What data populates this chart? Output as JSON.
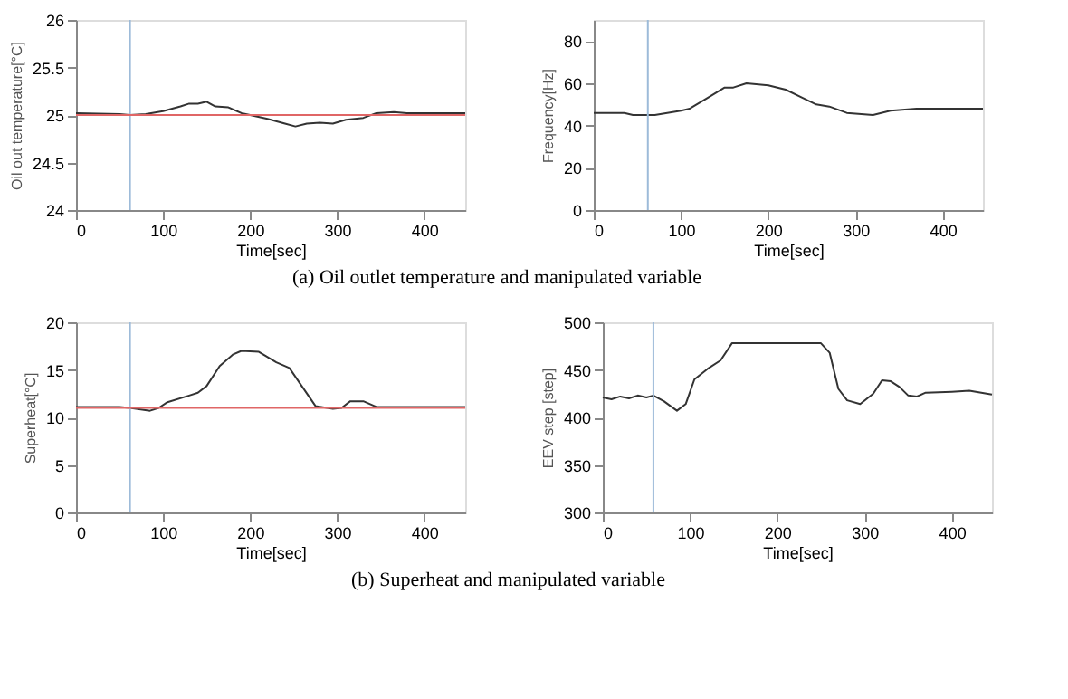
{
  "chart_data": [
    {
      "type": "line",
      "xlabel": "Time[sec]",
      "ylabel": "Oil out temperature[°C]",
      "xlim": [
        0,
        447
      ],
      "xticks": [
        0,
        100,
        200,
        300,
        400
      ],
      "ylim": [
        24,
        26
      ],
      "yticks": [
        24,
        24.5,
        25,
        25.5,
        26
      ],
      "grid": false,
      "marker": "none",
      "line_style": "solid",
      "annotations": [
        "(a)  Oil  outlet  temperature  and  manipulated  variable"
      ],
      "ref_lines": [
        {
          "axis": "x",
          "value": 62,
          "color": "#9dbbd9"
        },
        {
          "axis": "y",
          "value": 25,
          "color": "#e06666"
        }
      ],
      "series": [
        {
          "color": "#333333",
          "x": [
            0,
            50,
            62,
            80,
            100,
            120,
            130,
            140,
            150,
            160,
            175,
            190,
            200,
            220,
            240,
            252,
            265,
            280,
            295,
            310,
            330,
            345,
            365,
            380,
            400,
            447
          ],
          "values": [
            25.02,
            25.01,
            25.0,
            25.01,
            25.04,
            25.09,
            25.12,
            25.12,
            25.14,
            25.09,
            25.08,
            25.02,
            25.0,
            24.96,
            24.91,
            24.88,
            24.91,
            24.92,
            24.91,
            24.95,
            24.97,
            25.02,
            25.03,
            25.02,
            25.02,
            25.02
          ]
        }
      ]
    },
    {
      "type": "line",
      "xlabel": "Time[sec]",
      "ylabel": "Frequency[Hz]",
      "xlim": [
        0,
        446
      ],
      "xticks": [
        0,
        100,
        200,
        300,
        400
      ],
      "ylim": [
        0,
        90
      ],
      "yticks": [
        0,
        20,
        40,
        60,
        80
      ],
      "grid": false,
      "marker": "none",
      "line_style": "solid",
      "ref_lines": [
        {
          "axis": "x",
          "value": 62,
          "color": "#9dbbd9"
        }
      ],
      "series": [
        {
          "color": "#333333",
          "x": [
            0,
            35,
            45,
            62,
            70,
            100,
            110,
            130,
            150,
            160,
            175,
            200,
            220,
            240,
            255,
            270,
            290,
            320,
            340,
            370,
            400,
            446
          ],
          "values": [
            46,
            46,
            45,
            45,
            45,
            47,
            48,
            53,
            58,
            58,
            60,
            59,
            57,
            53,
            50,
            49,
            46,
            45,
            47,
            48,
            48,
            48
          ]
        }
      ]
    },
    {
      "type": "line",
      "xlabel": "Time[sec]",
      "ylabel": "Superheat[°C]",
      "xlim": [
        0,
        447
      ],
      "xticks": [
        0,
        100,
        200,
        300,
        400
      ],
      "ylim": [
        0,
        20
      ],
      "yticks": [
        0,
        5,
        10,
        15,
        20
      ],
      "grid": false,
      "marker": "none",
      "line_style": "solid",
      "annotations": [
        "(b)  Superheat  and  manipulated  variable"
      ],
      "ref_lines": [
        {
          "axis": "x",
          "value": 62,
          "color": "#9dbbd9"
        },
        {
          "axis": "y",
          "value": 11,
          "color": "#e06666"
        }
      ],
      "series": [
        {
          "color": "#333333",
          "x": [
            0,
            50,
            62,
            85,
            95,
            105,
            130,
            140,
            150,
            165,
            180,
            190,
            210,
            230,
            245,
            260,
            275,
            295,
            305,
            315,
            330,
            345,
            400,
            447
          ],
          "values": [
            11.1,
            11.1,
            11.0,
            10.7,
            11.0,
            11.6,
            12.3,
            12.6,
            13.3,
            15.4,
            16.6,
            17.0,
            16.9,
            15.8,
            15.2,
            13.2,
            11.2,
            10.9,
            11.0,
            11.7,
            11.7,
            11.1,
            11.1,
            11.1
          ]
        }
      ]
    },
    {
      "type": "line",
      "xlabel": "Time[sec]",
      "ylabel": "EEV step [step]",
      "xlim": [
        0,
        446
      ],
      "xticks": [
        0,
        100,
        200,
        300,
        400
      ],
      "ylim": [
        300,
        500
      ],
      "yticks": [
        300,
        350,
        400,
        450,
        500
      ],
      "grid": false,
      "marker": "none",
      "line_style": "solid",
      "ref_lines": [
        {
          "axis": "x",
          "value": 58,
          "color": "#9dbbd9"
        }
      ],
      "series": [
        {
          "color": "#333333",
          "x": [
            0,
            10,
            20,
            30,
            40,
            50,
            58,
            70,
            85,
            95,
            105,
            120,
            135,
            148,
            250,
            260,
            270,
            280,
            295,
            310,
            320,
            330,
            340,
            350,
            360,
            370,
            400,
            420,
            446
          ],
          "values": [
            421,
            419,
            422,
            420,
            423,
            421,
            423,
            417,
            407,
            414,
            440,
            451,
            460,
            478,
            478,
            468,
            430,
            418,
            414,
            425,
            439,
            438,
            432,
            423,
            422,
            426,
            427,
            428,
            424
          ]
        }
      ]
    }
  ]
}
